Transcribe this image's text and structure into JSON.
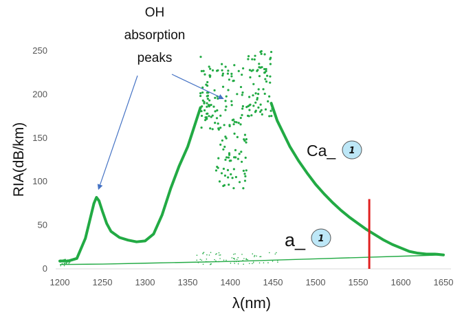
{
  "chart_data": {
    "type": "scatter",
    "title": "",
    "xlabel": "λ(nm)",
    "ylabel": "RIA(dB/km)",
    "xlim": [
      1200,
      1650
    ],
    "ylim": [
      0,
      250
    ],
    "x_ticks": [
      1200,
      1250,
      1300,
      1350,
      1400,
      1450,
      1500,
      1550,
      1600,
      1650
    ],
    "y_ticks": [
      0,
      50,
      100,
      150,
      200,
      250
    ],
    "grid": false,
    "legend": "none",
    "series": [
      {
        "name": "Ca_",
        "badge": "1",
        "color": "#22aa44",
        "style": "thick-line",
        "x": [
          1200,
          1210,
          1220,
          1230,
          1235,
          1240,
          1243,
          1246,
          1250,
          1255,
          1260,
          1270,
          1280,
          1290,
          1300,
          1310,
          1320,
          1330,
          1340,
          1350,
          1355,
          1360,
          1365
        ],
        "y": [
          9,
          9,
          12,
          35,
          55,
          75,
          82,
          78,
          66,
          52,
          43,
          36,
          33,
          31,
          32,
          40,
          62,
          92,
          118,
          140,
          155,
          170,
          185
        ],
        "x2": [
          1448,
          1455,
          1460,
          1470,
          1480,
          1490,
          1500,
          1510,
          1520,
          1530,
          1540,
          1550,
          1560,
          1570,
          1580,
          1590,
          1600,
          1610,
          1620,
          1630,
          1640,
          1650
        ],
        "y2": [
          190,
          170,
          160,
          140,
          124,
          110,
          97,
          86,
          76,
          67,
          59,
          52,
          45,
          39,
          33,
          28,
          24,
          20,
          18,
          17,
          17,
          16
        ]
      },
      {
        "name": "a_",
        "badge": "1",
        "color": "#22aa44",
        "style": "thin-line",
        "x": [
          1200,
          1250,
          1300,
          1350,
          1400,
          1450,
          1500,
          1550,
          1600,
          1650
        ],
        "y": [
          5,
          5.5,
          6.5,
          7.5,
          8.5,
          10,
          11.5,
          13,
          14.5,
          16
        ]
      }
    ],
    "scatter_region": {
      "x_range": [
        1365,
        1450
      ],
      "y_min": 92,
      "y_max": 250
    },
    "marker_line": {
      "x": 1563,
      "y_range": [
        0,
        80
      ],
      "color": "#e02020"
    },
    "annotation": {
      "text_lines": [
        "OH",
        "absorption",
        "peaks"
      ],
      "arrow_targets": [
        [
          1243,
          85
        ],
        [
          1395,
          192
        ]
      ]
    }
  }
}
